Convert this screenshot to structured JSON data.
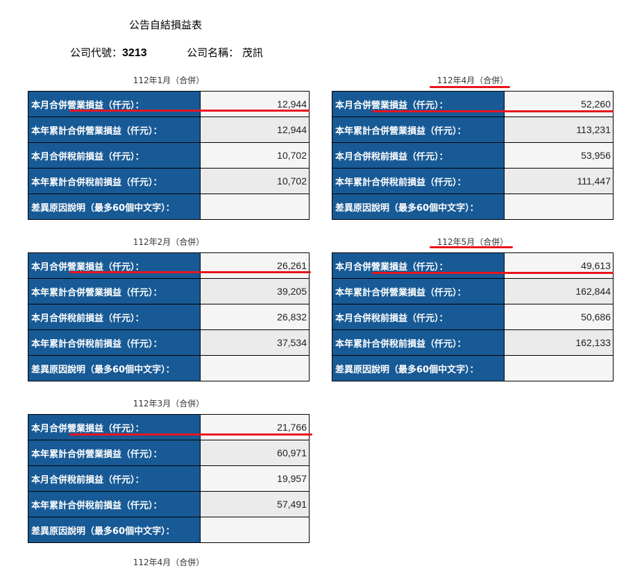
{
  "title": "公告自結損益表",
  "company": {
    "code_label": "公司代號：",
    "code": "3213",
    "name_label": "公司名稱：",
    "name": "茂訊"
  },
  "row_labels": [
    "本月合併營業損益（仟元）：",
    "本年累計合併營業損益（仟元）：",
    "本月合併稅前損益（仟元）：",
    "本年累計合併稅前損益（仟元）：",
    "差異原因說明（最多60個中文字）："
  ],
  "tables": [
    {
      "caption": "112年1月（合併）",
      "values": [
        "12,944",
        "12,944",
        "10,702",
        "10,702",
        ""
      ]
    },
    {
      "caption": "112年2月（合併）",
      "values": [
        "26,261",
        "39,205",
        "26,832",
        "37,534",
        ""
      ]
    },
    {
      "caption": "112年3月（合併）",
      "values": [
        "21,766",
        "60,971",
        "19,957",
        "57,491",
        ""
      ]
    },
    {
      "caption": "112年4月（合併）",
      "values": [
        "52,260",
        "113,231",
        "53,956",
        "111,447",
        ""
      ]
    },
    {
      "caption": "112年5月（合併）",
      "values": [
        "49,613",
        "162,844",
        "50,686",
        "162,133",
        ""
      ]
    }
  ],
  "next_caption": "112年4月（合併）",
  "annotation_color": "#e8141e"
}
